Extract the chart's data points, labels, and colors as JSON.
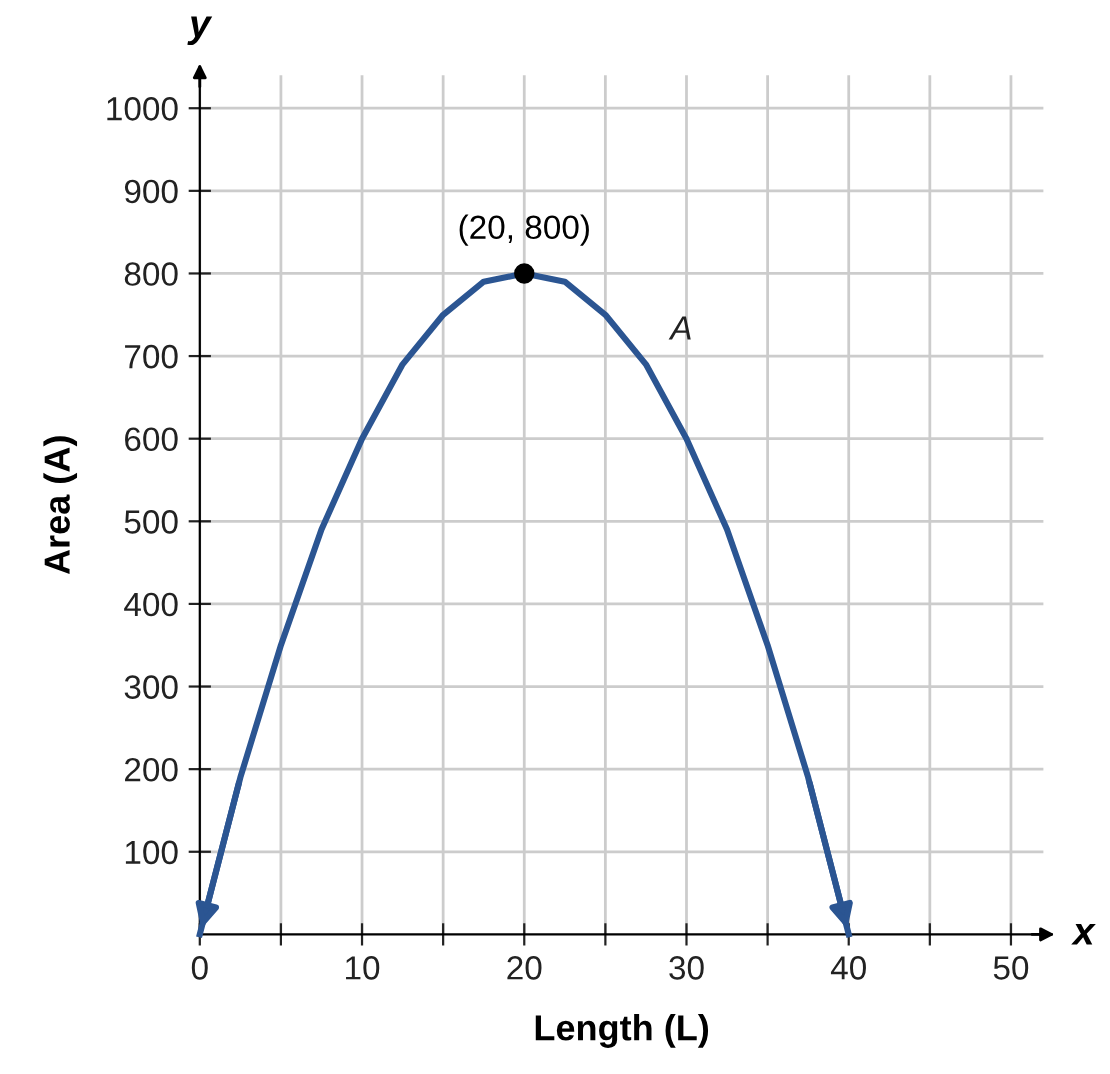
{
  "chart_data": {
    "type": "line",
    "xlabel": "Length (L)",
    "ylabel": "Area (A)",
    "series": [
      {
        "name": "A",
        "color": "#2b5592",
        "marker": "none",
        "line_style": "solid",
        "x": [
          0,
          2.5,
          5,
          7.5,
          10,
          12.5,
          15,
          17.5,
          20,
          22.5,
          25,
          27.5,
          30,
          32.5,
          35,
          37.5,
          40
        ],
        "values": [
          0,
          190,
          350,
          490,
          600,
          690,
          750,
          790,
          800,
          790,
          750,
          690,
          600,
          490,
          350,
          190,
          0
        ]
      },
      {
        "type": "scatter",
        "color": "#000000",
        "marker": "circle",
        "x": [
          20
        ],
        "values": [
          800
        ]
      }
    ],
    "annotations": [
      {
        "text": "(20, 800)",
        "x": 20,
        "y": 800
      },
      "x",
      "y"
    ],
    "xlim": [
      0,
      52
    ],
    "ylim": [
      0,
      1040
    ],
    "xticks": [
      0,
      {
        "value": 5,
        "label": null
      },
      10,
      {
        "value": 15,
        "label": null
      },
      20,
      {
        "value": 25,
        "label": null
      },
      30,
      {
        "value": 35,
        "label": null
      },
      40,
      {
        "value": 45,
        "label": null
      },
      50
    ],
    "yticks": [
      100,
      200,
      300,
      400,
      500,
      600,
      700,
      800,
      900,
      1000
    ],
    "grid": true,
    "legend": false
  }
}
